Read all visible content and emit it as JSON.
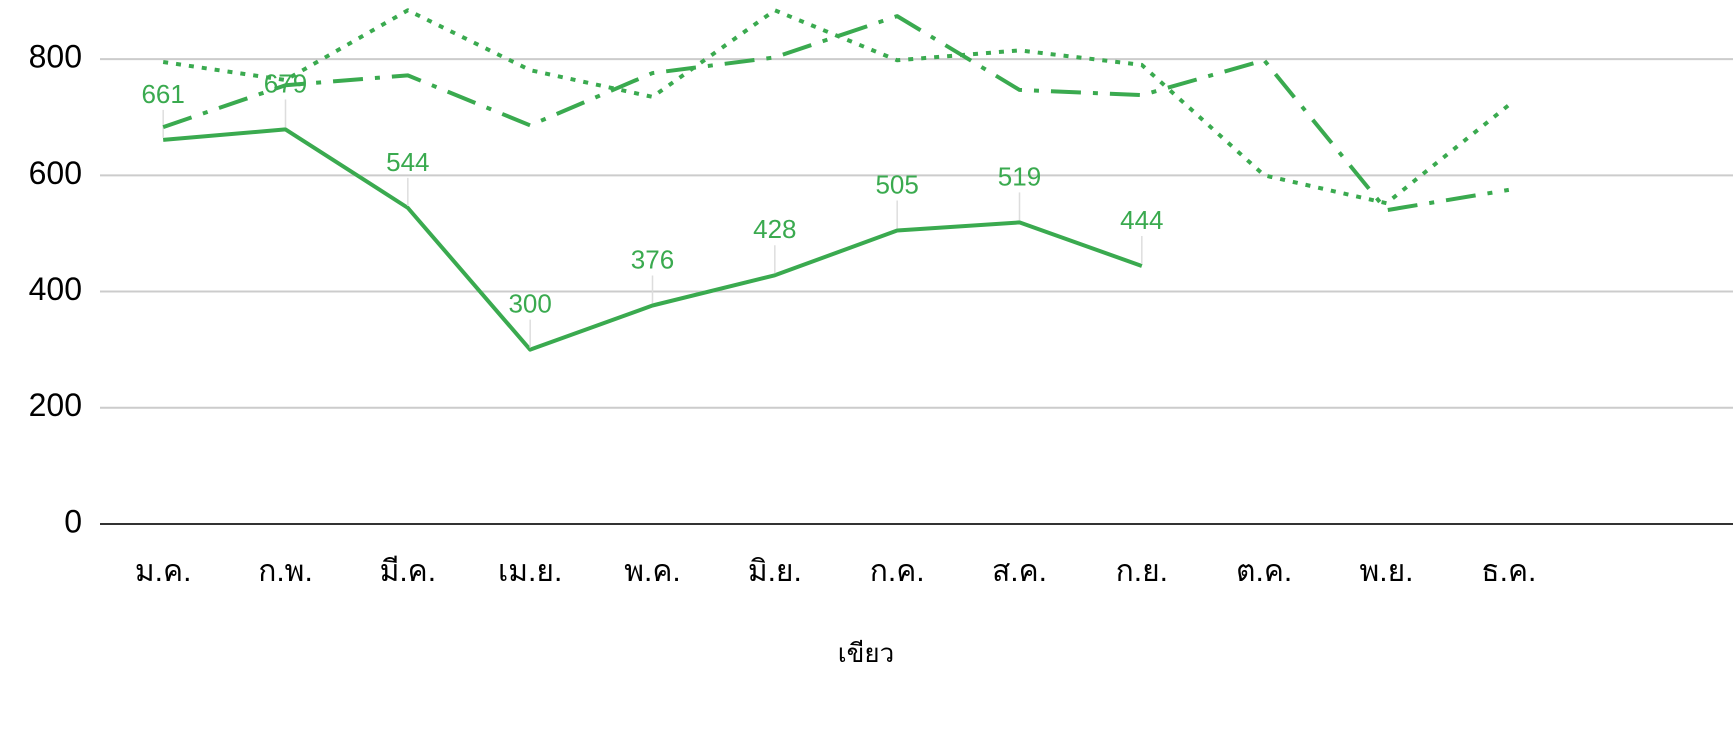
{
  "chart_data": {
    "type": "line",
    "x_label": "เขียว",
    "categories": [
      "ม.ค.",
      "ก.พ.",
      "มี.ค.",
      "เม.ย.",
      "พ.ค.",
      "มิ.ย.",
      "ก.ค.",
      "ส.ค.",
      "ก.ย.",
      "ต.ค.",
      "พ.ย.",
      "ธ.ค."
    ],
    "series": [
      {
        "color": "#3aaa4f",
        "style": "solid",
        "data_labels": true,
        "values": [
          661,
          679,
          544,
          300,
          376,
          428,
          505,
          519,
          444,
          null,
          null,
          null
        ]
      },
      {
        "color": "#3aaa4f",
        "style": "dashdot",
        "values": [
          683,
          755,
          772,
          686,
          776,
          803,
          874,
          747,
          738,
          798,
          540,
          575
        ]
      },
      {
        "color": "#3aaa4f",
        "style": "dotted",
        "values": [
          795,
          764,
          884,
          781,
          735,
          884,
          798,
          815,
          790,
          600,
          552,
          721
        ]
      }
    ],
    "ylim": [
      0,
      900
    ],
    "yticks": [
      0,
      200,
      400,
      600,
      800
    ],
    "grid": true
  }
}
